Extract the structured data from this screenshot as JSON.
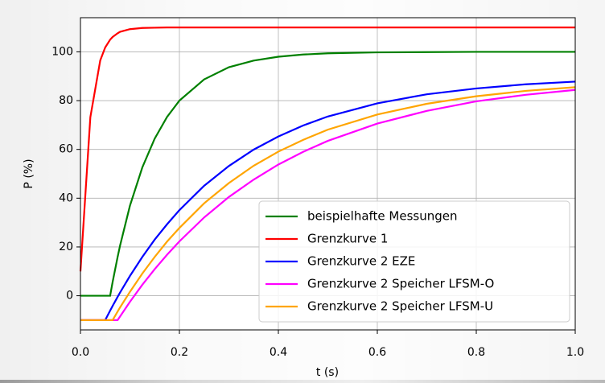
{
  "chart_data": {
    "type": "line",
    "xlabel": "t (s)",
    "ylabel": "P (%)",
    "x": [
      0,
      0.02,
      0.04,
      0.05,
      0.06,
      0.065,
      0.075,
      0.08,
      0.1,
      0.125,
      0.15,
      0.175,
      0.2,
      0.25,
      0.3,
      0.35,
      0.4,
      0.45,
      0.5,
      0.6,
      0.7,
      0.8,
      0.9,
      1.0
    ],
    "series": [
      {
        "name": "beispielhafte Messungen",
        "color": "#008000",
        "values": [
          0,
          0,
          0,
          0,
          0,
          5.6,
          15.8,
          20.5,
          36.9,
          52.6,
          64.4,
          73.3,
          80.0,
          88.7,
          93.7,
          96.4,
          98.0,
          98.9,
          99.4,
          99.8,
          99.9,
          100,
          100,
          100
        ]
      },
      {
        "name": "Grenzkurve 1",
        "color": "#ff0000",
        "values": [
          10,
          73.2,
          96.5,
          101.8,
          105.0,
          106.1,
          107.6,
          108.2,
          109.3,
          109.8,
          109.9,
          110,
          110,
          110,
          110,
          110,
          110,
          110,
          110,
          110,
          110,
          110,
          110,
          110
        ]
      },
      {
        "name": "Grenzkurve 2 EZE",
        "color": "#0000ff",
        "values": [
          -10,
          -10,
          -10,
          -10,
          -6.1,
          -4.2,
          -0.5,
          1.3,
          8.1,
          15.9,
          23.0,
          29.3,
          35.1,
          45.1,
          53.2,
          59.9,
          65.3,
          69.8,
          73.5,
          78.9,
          82.6,
          85.0,
          86.7,
          87.8
        ]
      },
      {
        "name": "Grenzkurve 2 Speicher LFSM-O",
        "color": "#ff00ff",
        "values": [
          -10,
          -10,
          -10,
          -10,
          -10,
          -10,
          -10,
          -8.5,
          -2.5,
          4.5,
          10.9,
          16.8,
          22.3,
          32.1,
          40.5,
          47.6,
          53.8,
          59.0,
          63.5,
          70.6,
          75.8,
          79.7,
          82.4,
          84.4
        ]
      },
      {
        "name": "Grenzkurve 2 Speicher LFSM-U",
        "color": "#ffa500",
        "values": [
          -10,
          -10,
          -10,
          -10,
          -10,
          -10,
          -6.5,
          -4.8,
          1.6,
          9.1,
          15.9,
          22.2,
          27.8,
          37.9,
          46.2,
          53.3,
          59.1,
          63.9,
          68.1,
          74.3,
          78.7,
          81.8,
          84.0,
          85.5
        ]
      }
    ],
    "xlim": [
      0,
      1.0
    ],
    "ylim": [
      -14,
      114
    ],
    "xticks": [
      {
        "value": 0,
        "label": "0.0"
      },
      0.2,
      0.4,
      0.6,
      0.8,
      {
        "value": 1.0,
        "label": "1.0"
      }
    ],
    "yticks": [
      0,
      20,
      40,
      60,
      80,
      100
    ],
    "grid": true,
    "legend": "lower right"
  }
}
